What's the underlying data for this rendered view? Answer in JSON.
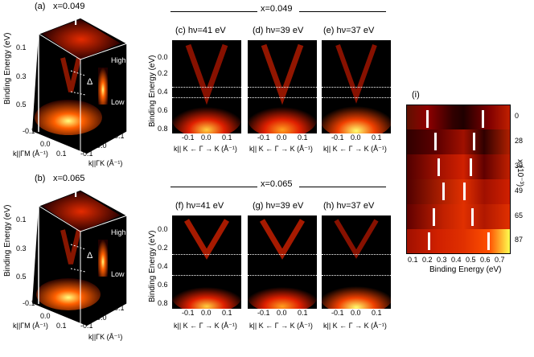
{
  "section_top": {
    "x_label": "x=0.049"
  },
  "section_bottom": {
    "x_label": "x=0.065"
  },
  "panel_a": {
    "tag": "(a)",
    "x_label": "x=0.049",
    "gamma": "Γ",
    "delta": "Δ",
    "scale_high": "High",
    "scale_low": "Low",
    "yaxis": "Binding Energy (eV)",
    "yticks": [
      "0.1",
      "0.3",
      "0.5"
    ],
    "kx_label": "k||ΓM (Å⁻¹)",
    "ky_label": "k||ΓK (Å⁻¹)",
    "kx_ticks": [
      "-0.1",
      "0.0",
      "0.1"
    ],
    "ky_ticks": [
      "-0.1",
      "0.0",
      "0.1"
    ]
  },
  "panel_b": {
    "tag": "(b)",
    "x_label": "x=0.065",
    "gamma": "Γ",
    "delta": "Δ",
    "scale_high": "High",
    "scale_low": "Low",
    "yaxis": "Binding Energy (eV)",
    "yticks": [
      "0.1",
      "0.3",
      "0.5"
    ],
    "kx_label": "k||ΓM (Å⁻¹)",
    "ky_label": "k||ΓK (Å⁻¹)",
    "kx_ticks": [
      "-0.1",
      "0.0",
      "0.1"
    ],
    "ky_ticks": [
      "-0.1",
      "0.0",
      "0.1"
    ]
  },
  "arpes_rows": [
    {
      "yaxis": "Binding Energy (eV)",
      "yticks": [
        "0.0",
        "0.2",
        "0.4",
        "0.6",
        "0.8"
      ],
      "panels": [
        {
          "tag": "(c)",
          "photon": "hν=41 eV"
        },
        {
          "tag": "(d)",
          "photon": "hν=39 eV"
        },
        {
          "tag": "(e)",
          "photon": "hν=37 eV"
        }
      ]
    },
    {
      "yaxis": "Binding Energy (eV)",
      "yticks": [
        "0.0",
        "0.2",
        "0.4",
        "0.6",
        "0.8"
      ],
      "panels": [
        {
          "tag": "(f)",
          "photon": "hν=41 eV"
        },
        {
          "tag": "(g)",
          "photon": "hν=39 eV"
        },
        {
          "tag": "(h)",
          "photon": "hν=37 eV"
        }
      ]
    }
  ],
  "arpes_xticks": [
    "-0.1",
    "0.0",
    "0.1"
  ],
  "arpes_xlabel": "k|| K ← Γ → K (Å⁻¹)",
  "panel_i": {
    "tag": "(i)",
    "xaxis": "Binding Energy (eV)",
    "xticks": [
      "0.1",
      "0.2",
      "0.3",
      "0.4",
      "0.5",
      "0.6",
      "0.7"
    ],
    "rows": [
      "0",
      "28",
      "39",
      "49",
      "65",
      "87"
    ],
    "ylabel": "x (10⁻³)"
  },
  "colors": {
    "high": "#ffff60",
    "mid": "#ff4000",
    "low": "#200000"
  }
}
